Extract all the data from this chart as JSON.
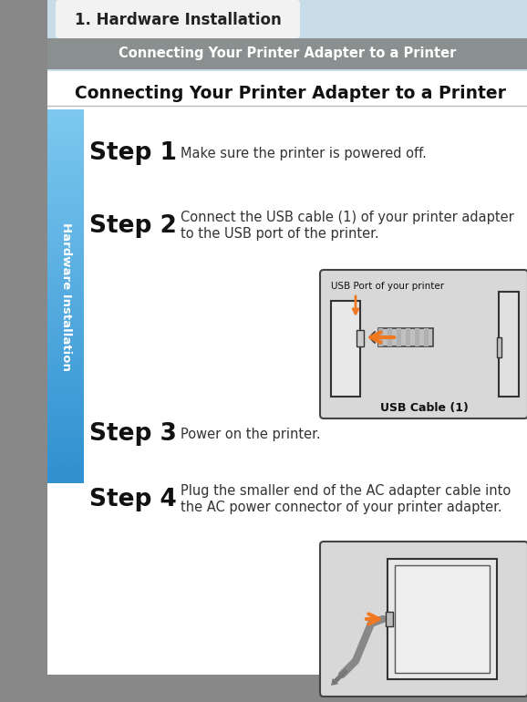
{
  "bg_color": "#ffffff",
  "top_light_blue": "#c8dce8",
  "gray_bar_color": "#8a9090",
  "section_title_color": "#111111",
  "sidebar_blue_top": "#7cc8f0",
  "sidebar_blue_bot": "#3090d0",
  "left_strip_color": "#888888",
  "bottom_strip_color": "#888888",
  "step_label_color": "#111111",
  "step_text_color": "#333333",
  "arrow_color": "#f07820",
  "img1_bg": "#d8d8d8",
  "img2_bg": "#d8d8d8",
  "title_tab_text": "1. Hardware Installation",
  "header_bar_text": "Connecting Your Printer Adapter to a Printer",
  "section_title": "Connecting Your Printer Adapter to a Printer",
  "sidebar_text": "Hardware Installation",
  "step1_label": "Step 1",
  "step1_text": "Make sure the printer is powered off.",
  "step2_label": "Step 2",
  "step2_text1": "Connect the USB cable (1) of your printer adapter",
  "step2_text2": "to the USB port of the printer.",
  "step3_label": "Step 3",
  "step3_text": "Power on the printer.",
  "step4_label": "Step 4",
  "step4_text1": "Plug the smaller end of the AC adapter cable into",
  "step4_text2": "the AC power connector of your printer adapter.",
  "img1_label_top": "USB Port of your printer",
  "img1_label_bot": "USB Cable (1)",
  "figw": 5.78,
  "figh": 7.7,
  "dpi": 100
}
